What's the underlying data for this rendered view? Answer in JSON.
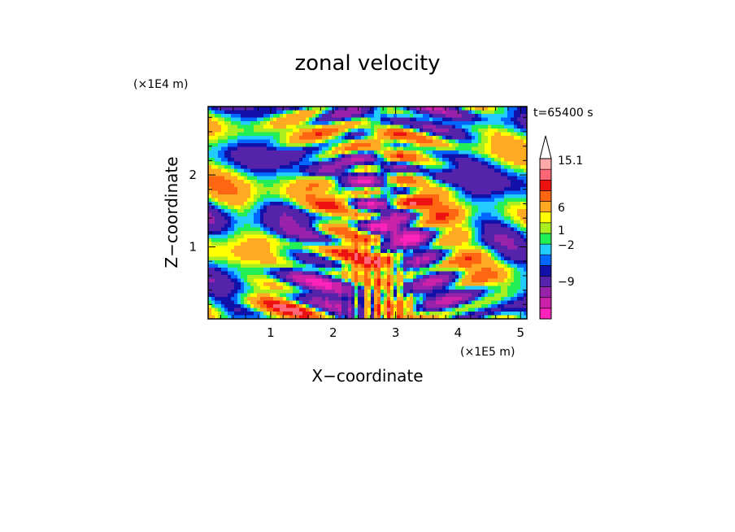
{
  "chart_data": {
    "type": "heatmap",
    "title": "zonal velocity",
    "xlabel": "X−coordinate",
    "ylabel": "Z−coordinate",
    "x_scale_label": "(×1E5 m)",
    "y_scale_label": "(×1E4 m)",
    "time_label": "t=65400 s",
    "xlim": [
      0,
      5.1
    ],
    "ylim": [
      0,
      2.95
    ],
    "x_ticks": [
      "1",
      "2",
      "3",
      "4",
      "5"
    ],
    "y_ticks": [
      "1",
      "2"
    ],
    "x_tick_values": [
      1,
      2,
      3,
      4,
      5
    ],
    "y_tick_values": [
      1,
      2
    ],
    "colorbar": {
      "labels": [
        "15.1",
        "6",
        "1",
        "−2",
        "−9"
      ],
      "levels": [
        -15,
        -12,
        -9,
        -6,
        -3,
        -2,
        -1,
        0,
        1,
        2,
        3,
        6,
        9,
        12,
        15.1
      ],
      "colors": [
        "#ff22bb",
        "#cc22aa",
        "#9922aa",
        "#5522aa",
        "#1111aa",
        "#0066ff",
        "#22ccff",
        "#22ee55",
        "#aaee22",
        "#ffff00",
        "#ffaa22",
        "#ff6611",
        "#ee1111",
        "#ff6677",
        "#ffaaaa"
      ],
      "extend_color": "#ffffff"
    }
  }
}
